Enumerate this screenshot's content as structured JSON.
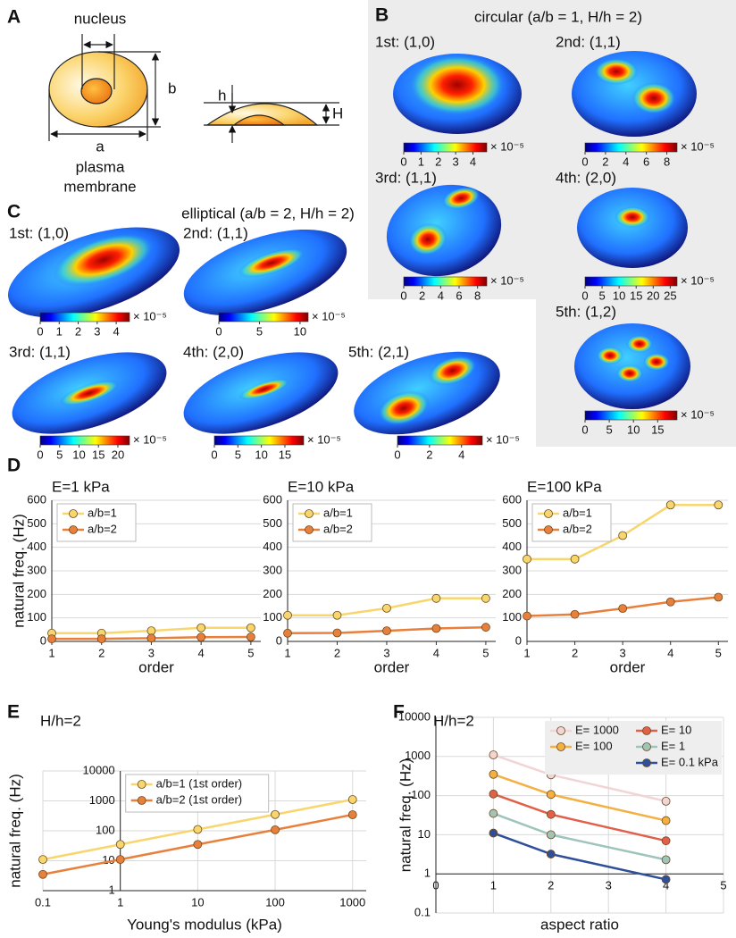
{
  "panel_a": {
    "letter": "A",
    "nucleus": "nucleus",
    "a": "a",
    "b": "b",
    "membrane": [
      "plasma",
      "membrane"
    ],
    "h": "h",
    "H": "H"
  },
  "panel_b": {
    "letter": "B",
    "title": "circular (a/b = 1, H/h = 2)",
    "modes": [
      {
        "label": "1st: (1,0)",
        "colorbar": {
          "lim": [
            0,
            4.8
          ],
          "ticks": [
            0,
            1,
            2,
            3,
            4
          ],
          "scale": "× 10⁻⁵"
        }
      },
      {
        "label": "2nd: (1,1)",
        "colorbar": {
          "lim": [
            0,
            9
          ],
          "ticks": [
            0,
            2,
            4,
            6,
            8
          ],
          "scale": "× 10⁻⁵"
        }
      },
      {
        "label": "3rd: (1,1)",
        "colorbar": {
          "lim": [
            0,
            9
          ],
          "ticks": [
            0,
            2,
            4,
            6,
            8
          ],
          "scale": "× 10⁻⁵"
        }
      },
      {
        "label": "4th: (2,0)",
        "colorbar": {
          "lim": [
            0,
            27
          ],
          "ticks": [
            0,
            5,
            10,
            15,
            20,
            25
          ],
          "scale": "× 10⁻⁵"
        }
      },
      {
        "label": "5th: (1,2)",
        "colorbar": {
          "lim": [
            0,
            19
          ],
          "ticks": [
            0,
            5,
            10,
            15
          ],
          "scale": "× 10⁻⁵"
        }
      }
    ]
  },
  "panel_c": {
    "letter": "C",
    "title": "elliptical (a/b = 2, H/h = 2)",
    "modes": [
      {
        "label": "1st: (1,0)",
        "colorbar": {
          "lim": [
            0,
            4.7
          ],
          "ticks": [
            0,
            1,
            2,
            3,
            4
          ],
          "scale": "× 10⁻⁵"
        }
      },
      {
        "label": "2nd: (1,1)",
        "colorbar": {
          "lim": [
            0,
            11
          ],
          "ticks": [
            0,
            5,
            10
          ],
          "scale": "× 10⁻⁵"
        }
      },
      {
        "label": "3rd: (1,1)",
        "colorbar": {
          "lim": [
            0,
            23
          ],
          "ticks": [
            0,
            5,
            10,
            15,
            20
          ],
          "scale": "× 10⁻⁵"
        }
      },
      {
        "label": "4th: (2,0)",
        "colorbar": {
          "lim": [
            0,
            19
          ],
          "ticks": [
            0,
            5,
            10,
            15
          ],
          "scale": "× 10⁻⁵"
        }
      },
      {
        "label": "5th: (2,1)",
        "colorbar": {
          "lim": [
            0,
            5.3
          ],
          "ticks": [
            0,
            2,
            4
          ],
          "scale": "× 10⁻⁵"
        }
      }
    ]
  },
  "panel_d": {
    "letter": "D"
  },
  "panel_e": {
    "letter": "E"
  },
  "panel_f": {
    "letter": "F"
  },
  "chart_data": [
    {
      "type": "line",
      "title": "E=1 kPa",
      "ylabel": "natural freq. (Hz)",
      "xlabel": "order",
      "x": [
        1,
        2,
        3,
        4,
        5
      ],
      "xlim": [
        1,
        5.2
      ],
      "xticks": [
        1,
        2,
        3,
        4,
        5
      ],
      "ylim": [
        0,
        600
      ],
      "yticks": [
        0,
        100,
        200,
        300,
        400,
        500,
        600
      ],
      "grid": true,
      "legend": "upper left",
      "series": [
        {
          "name": "a/b=1",
          "color": "#f8d66e",
          "values": [
            35,
            35,
            45,
            58,
            58
          ]
        },
        {
          "name": "a/b=2",
          "color": "#e8803c",
          "values": [
            11,
            11,
            14,
            18,
            19
          ]
        }
      ]
    },
    {
      "type": "line",
      "title": "E=10 kPa",
      "xlabel": "order",
      "x": [
        1,
        2,
        3,
        4,
        5
      ],
      "xlim": [
        1,
        5.2
      ],
      "xticks": [
        1,
        2,
        3,
        4,
        5
      ],
      "ylim": [
        0,
        600
      ],
      "yticks": [
        0,
        100,
        200,
        300,
        400,
        500,
        600
      ],
      "grid": true,
      "legend": "upper left",
      "series": [
        {
          "name": "a/b=1",
          "color": "#f8d66e",
          "values": [
            111,
            111,
            141,
            183,
            183
          ]
        },
        {
          "name": "a/b=2",
          "color": "#e8803c",
          "values": [
            35,
            36,
            45,
            55,
            60
          ]
        }
      ]
    },
    {
      "type": "line",
      "title": "E=100 kPa",
      "xlabel": "order",
      "x": [
        1,
        2,
        3,
        4,
        5
      ],
      "xlim": [
        1,
        5.2
      ],
      "xticks": [
        1,
        2,
        3,
        4,
        5
      ],
      "ylim": [
        0,
        600
      ],
      "yticks": [
        0,
        100,
        200,
        300,
        400,
        500,
        600
      ],
      "grid": true,
      "legend": "upper left",
      "series": [
        {
          "name": "a/b=1",
          "color": "#f8d66e",
          "values": [
            350,
            350,
            450,
            580,
            580
          ]
        },
        {
          "name": "a/b=2",
          "color": "#e8803c",
          "values": [
            108,
            115,
            140,
            168,
            188
          ]
        }
      ]
    },
    {
      "type": "line",
      "subtitle": "H/h=2",
      "ylabel": "natural freq. (Hz)",
      "xlabel": "Young's modulus (kPa)",
      "x": [
        0.1,
        1,
        10,
        100,
        1000
      ],
      "xscale": "log",
      "yscale": "log",
      "xlim": [
        0.1,
        1500
      ],
      "xticks": [
        0.1,
        1,
        10,
        100,
        1000
      ],
      "ylim": [
        1,
        10000
      ],
      "yticks": [
        1,
        10,
        100,
        1000,
        10000
      ],
      "yaxis_at_x": 1,
      "grid": true,
      "legend": "upper left",
      "series": [
        {
          "name": "a/b=1 (1st order)",
          "color": "#f8d66e",
          "values": [
            11,
            35,
            111,
            350,
            1110
          ]
        },
        {
          "name": "a/b=2 (1st order)",
          "color": "#e8803c",
          "values": [
            3.5,
            11,
            35,
            108,
            345
          ]
        }
      ]
    },
    {
      "type": "line",
      "subtitle": "H/h=2",
      "ylabel": "natural freq. (Hz)",
      "xlabel": "aspect ratio",
      "x": [
        1,
        2,
        4
      ],
      "yscale": "log",
      "xlim": [
        0,
        5
      ],
      "xticks": [
        0,
        1,
        2,
        3,
        4,
        5
      ],
      "ylim": [
        0.1,
        10000
      ],
      "yticks": [
        0.1,
        1,
        10,
        100,
        1000,
        10000
      ],
      "xaxis_at_y": 1,
      "grid": true,
      "legend": "upper right",
      "series": [
        {
          "name": "E= 1000",
          "color": "#f2d4d4",
          "values": [
            1100,
            340,
            72
          ]
        },
        {
          "name": "E= 100",
          "color": "#f4b042",
          "values": [
            350,
            107,
            23
          ]
        },
        {
          "name": "E= 10",
          "color": "#e0604a",
          "values": [
            110,
            33,
            7
          ]
        },
        {
          "name": "E= 1",
          "color": "#9fc4bb",
          "values": [
            35,
            10,
            2.3
          ]
        },
        {
          "name": "E= 0.1 kPa",
          "color": "#2f4f9a",
          "values": [
            11,
            3.2,
            0.72
          ]
        }
      ]
    }
  ]
}
